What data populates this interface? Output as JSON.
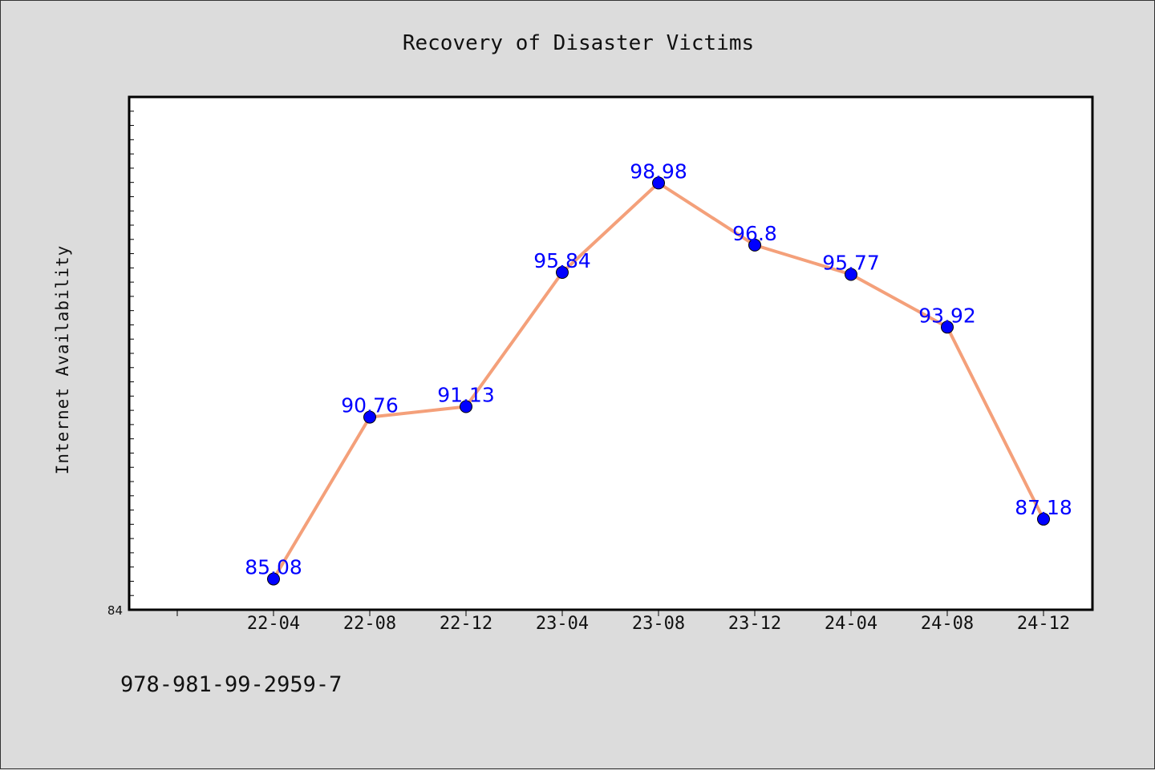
{
  "chart_data": {
    "type": "line",
    "title": "Recovery of Disaster Victims",
    "xlabel": "",
    "ylabel": "Internet Availability",
    "categories": [
      "22-04",
      "22-08",
      "22-12",
      "23-04",
      "23-08",
      "23-12",
      "24-04",
      "24-08",
      "24-12"
    ],
    "series": [
      {
        "values": [
          85.08,
          90.76,
          91.13,
          95.84,
          98.98,
          96.8,
          95.77,
          93.92,
          87.18
        ]
      }
    ],
    "data_labels": [
      "85.08",
      "90.76",
      "91.13",
      "95.84",
      "98.98",
      "96.8",
      "95.77",
      "93.92",
      "87.18"
    ],
    "ylim": [
      84,
      102
    ],
    "y_tick_labels": [
      "84"
    ],
    "grid": false,
    "legend": "none",
    "colors": {
      "line": "#f4a07a",
      "marker": "#0000ff",
      "label": "#0000ff"
    }
  },
  "footer": {
    "isbn": "978-981-99-2959-7"
  }
}
